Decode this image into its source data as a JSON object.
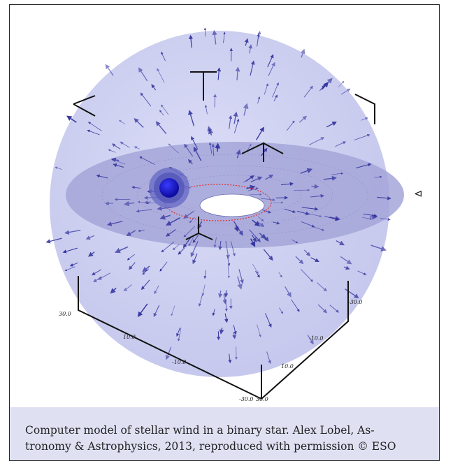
{
  "figure": {
    "axis_ticks": [
      "30.0",
      "10.0",
      "-10.0",
      "-30.0",
      "30.0",
      "10.0",
      "-10.0",
      "-30.0"
    ],
    "marker_symbol": "⊲",
    "colors": {
      "sphere": "#c7c9ef",
      "disk": "#9d9fd4",
      "arrow": "#2e2f9c",
      "star": "#1414c8",
      "orbit": "#e03030"
    }
  },
  "caption": {
    "line1": "Computer model of stellar wind in a binary star. Alex Lobel, As-",
    "line2": "tronomy & Astrophysics, 2013, reproduced with permission © ESO"
  }
}
